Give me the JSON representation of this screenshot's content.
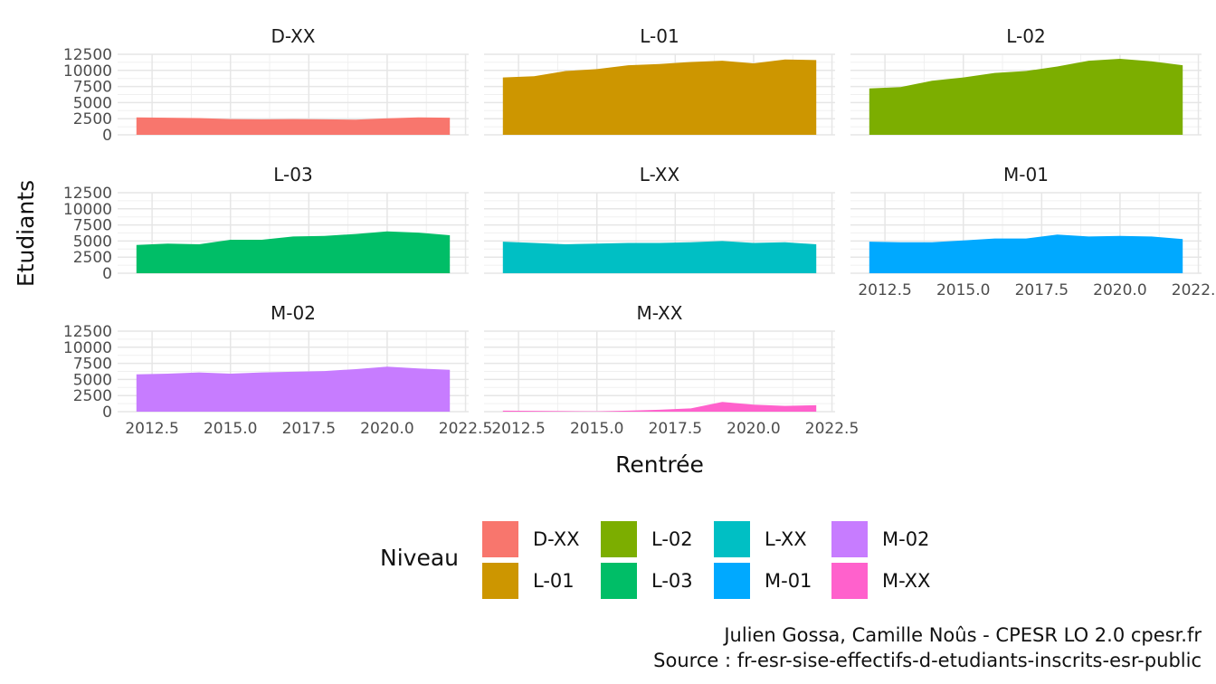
{
  "chart_data": {
    "type": "area",
    "xlabel": "Rentrée",
    "ylabel": "Etudiants",
    "x": [
      2012,
      2013,
      2014,
      2015,
      2016,
      2017,
      2018,
      2019,
      2020,
      2021,
      2022
    ],
    "xlim": [
      2011.4,
      2022.6
    ],
    "x_ticks": [
      2012.5,
      2015.0,
      2017.5,
      2020.0,
      2022.5
    ],
    "x_tick_labels": [
      "2012.5",
      "2015.0",
      "2017.5",
      "2020.0",
      "2022.5"
    ],
    "ylim": [
      0,
      12500
    ],
    "y_ticks": [
      0,
      2500,
      5000,
      7500,
      10000,
      12500
    ],
    "y_tick_labels": [
      "0",
      "2500",
      "5000",
      "7500",
      "10000",
      "12500"
    ],
    "grid": true,
    "legend_position": "bottom",
    "panels": [
      {
        "name": "D-XX",
        "color": "#F8766D",
        "values": [
          2700,
          2650,
          2600,
          2450,
          2400,
          2450,
          2400,
          2350,
          2550,
          2700,
          2650
        ]
      },
      {
        "name": "L-01",
        "color": "#CD9600",
        "values": [
          8900,
          9100,
          9900,
          10200,
          10800,
          11000,
          11300,
          11500,
          11100,
          11700,
          11600
        ]
      },
      {
        "name": "L-02",
        "color": "#7CAE00",
        "values": [
          7200,
          7400,
          8400,
          8900,
          9600,
          9900,
          10600,
          11500,
          11800,
          11400,
          10800
        ]
      },
      {
        "name": "L-03",
        "color": "#00BE67",
        "values": [
          4400,
          4600,
          4500,
          5200,
          5200,
          5700,
          5800,
          6100,
          6500,
          6300,
          5900
        ]
      },
      {
        "name": "L-XX",
        "color": "#00BFC4",
        "values": [
          4900,
          4700,
          4500,
          4600,
          4700,
          4700,
          4800,
          5000,
          4700,
          4800,
          4500
        ]
      },
      {
        "name": "M-01",
        "color": "#00A9FF",
        "values": [
          4900,
          4800,
          4800,
          5100,
          5400,
          5400,
          6000,
          5700,
          5800,
          5700,
          5300
        ]
      },
      {
        "name": "M-02",
        "color": "#C77CFF",
        "values": [
          5800,
          5900,
          6100,
          5900,
          6100,
          6200,
          6300,
          6600,
          7000,
          6700,
          6500
        ]
      },
      {
        "name": "M-XX",
        "color": "#FF61CC",
        "values": [
          150,
          120,
          80,
          50,
          150,
          300,
          500,
          1500,
          1100,
          900,
          1000
        ]
      }
    ]
  },
  "legend": {
    "title": "Niveau",
    "items": [
      {
        "label": "D-XX",
        "color": "#F8766D"
      },
      {
        "label": "L-01",
        "color": "#CD9600"
      },
      {
        "label": "L-02",
        "color": "#7CAE00"
      },
      {
        "label": "L-03",
        "color": "#00BE67"
      },
      {
        "label": "L-XX",
        "color": "#00BFC4"
      },
      {
        "label": "M-01",
        "color": "#00A9FF"
      },
      {
        "label": "M-02",
        "color": "#C77CFF"
      },
      {
        "label": "M-XX",
        "color": "#FF61CC"
      }
    ]
  },
  "caption": {
    "line1": "Julien Gossa, Camille Noûs - CPESR LO 2.0 cpesr.fr",
    "line2": "Source : fr-esr-sise-effectifs-d-etudiants-inscrits-esr-public"
  }
}
